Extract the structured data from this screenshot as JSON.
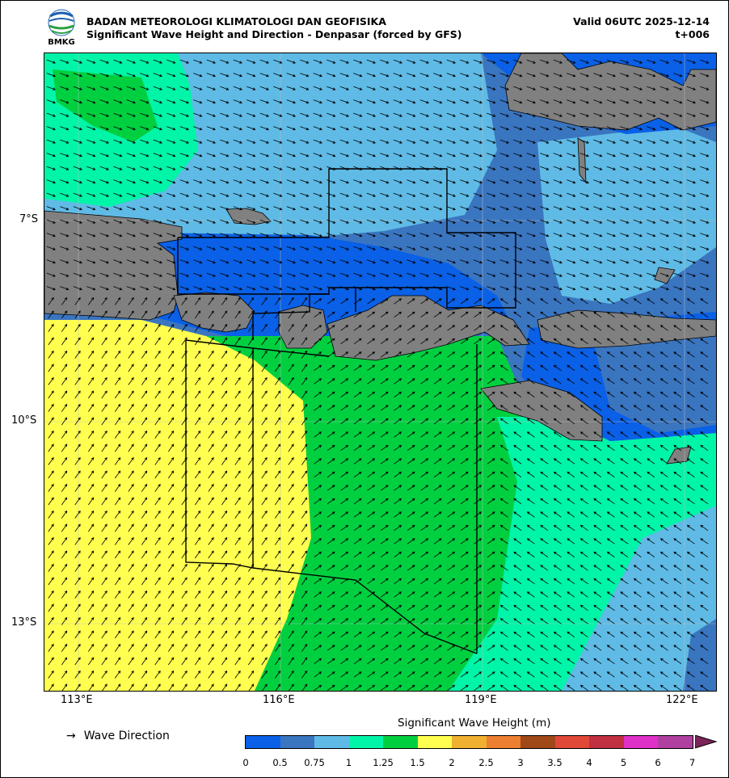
{
  "header": {
    "agency": "BADAN METEOROLOGI KLIMATOLOGI DAN GEOFISIKA",
    "subtitle": "Significant Wave Height and Direction - Denpasar (forced by GFS)",
    "valid": "Valid 06UTC 2025-12-14",
    "lead": "t+006",
    "logo_text": "BMKG"
  },
  "map": {
    "x_ticks": [
      "113°E",
      "116°E",
      "119°E",
      "122°E"
    ],
    "y_ticks": [
      "7°S",
      "10°S",
      "13°S"
    ],
    "land_color": "#808080"
  },
  "legend": {
    "arrow_symbol": "→",
    "arrow_label": "Wave Direction",
    "colorbar_title": "Significant Wave Height (m)",
    "colorbar_labels": [
      "0",
      "0.5",
      "0.75",
      "1",
      "1.25",
      "1.5",
      "2",
      "2.5",
      "3",
      "3.5",
      "4",
      "5",
      "6",
      "7"
    ],
    "colorbar_colors": [
      "#0a60e6",
      "#3a75c0",
      "#5fbbe6",
      "#00f5a8",
      "#00d040",
      "#ffff50",
      "#f0b030",
      "#ec8030",
      "#a04818",
      "#e04838",
      "#c03040",
      "#e030c8",
      "#b040a0"
    ]
  }
}
